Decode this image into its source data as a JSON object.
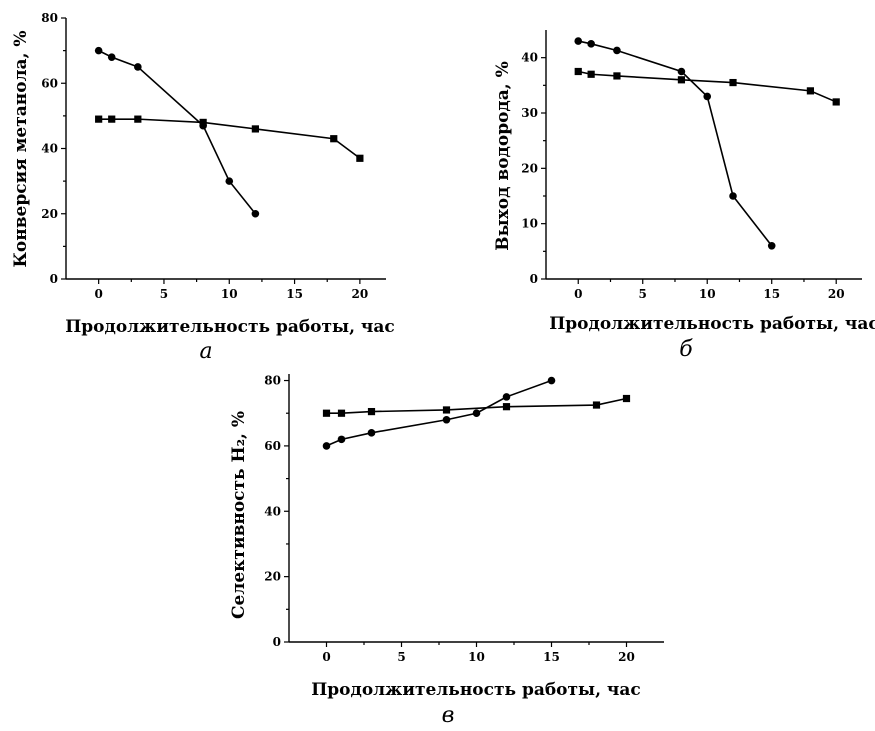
{
  "chart_data": [
    {
      "type": "line",
      "panel_label": "а",
      "xlabel": "Продолжительность работы, час",
      "ylabel": "Конверсия метанола, %",
      "xlim": [
        -2.5,
        22
      ],
      "ylim": [
        0,
        80
      ],
      "xticks": [
        0,
        5,
        10,
        15,
        20
      ],
      "yticks": [
        0,
        20,
        40,
        60,
        80
      ],
      "grid": false,
      "series": [
        {
          "marker": "circle",
          "x": [
            0,
            1,
            3,
            8,
            10,
            12
          ],
          "y": [
            70,
            68,
            65,
            47,
            30,
            20
          ]
        },
        {
          "marker": "square",
          "x": [
            0,
            1,
            3,
            8,
            12,
            18,
            20
          ],
          "y": [
            49,
            49,
            49,
            48,
            46,
            43,
            37
          ]
        }
      ]
    },
    {
      "type": "line",
      "panel_label": "б",
      "xlabel": "Продолжительность работы, час",
      "ylabel": "Выход водорода, %",
      "xlim": [
        -2.5,
        22
      ],
      "ylim": [
        0,
        45
      ],
      "xticks": [
        0,
        5,
        10,
        15,
        20
      ],
      "yticks": [
        0,
        10,
        20,
        30,
        40
      ],
      "grid": false,
      "series": [
        {
          "marker": "circle",
          "x": [
            0,
            1,
            3,
            8,
            10,
            12,
            15
          ],
          "y": [
            43,
            42.5,
            41.3,
            37.5,
            33,
            15,
            6
          ]
        },
        {
          "marker": "square",
          "x": [
            0,
            1,
            3,
            8,
            12,
            18,
            20
          ],
          "y": [
            37.5,
            37,
            36.7,
            36,
            35.5,
            34,
            32
          ]
        }
      ]
    },
    {
      "type": "line",
      "panel_label": "в",
      "xlabel": "Продолжительность работы, час",
      "ylabel": "Селективность H₂, %",
      "xlim": [
        -2.5,
        22.5
      ],
      "ylim": [
        0,
        82
      ],
      "xticks": [
        0,
        5,
        10,
        15,
        20
      ],
      "yticks": [
        0,
        20,
        40,
        60,
        80
      ],
      "grid": false,
      "series": [
        {
          "marker": "circle",
          "x": [
            0,
            1,
            3,
            8,
            10,
            12,
            15
          ],
          "y": [
            60,
            62,
            64,
            68,
            70,
            75,
            80
          ]
        },
        {
          "marker": "square",
          "x": [
            0,
            1,
            3,
            8,
            12,
            18,
            20
          ],
          "y": [
            70,
            70,
            70.5,
            71,
            72,
            72.5,
            74.5
          ]
        }
      ]
    }
  ]
}
